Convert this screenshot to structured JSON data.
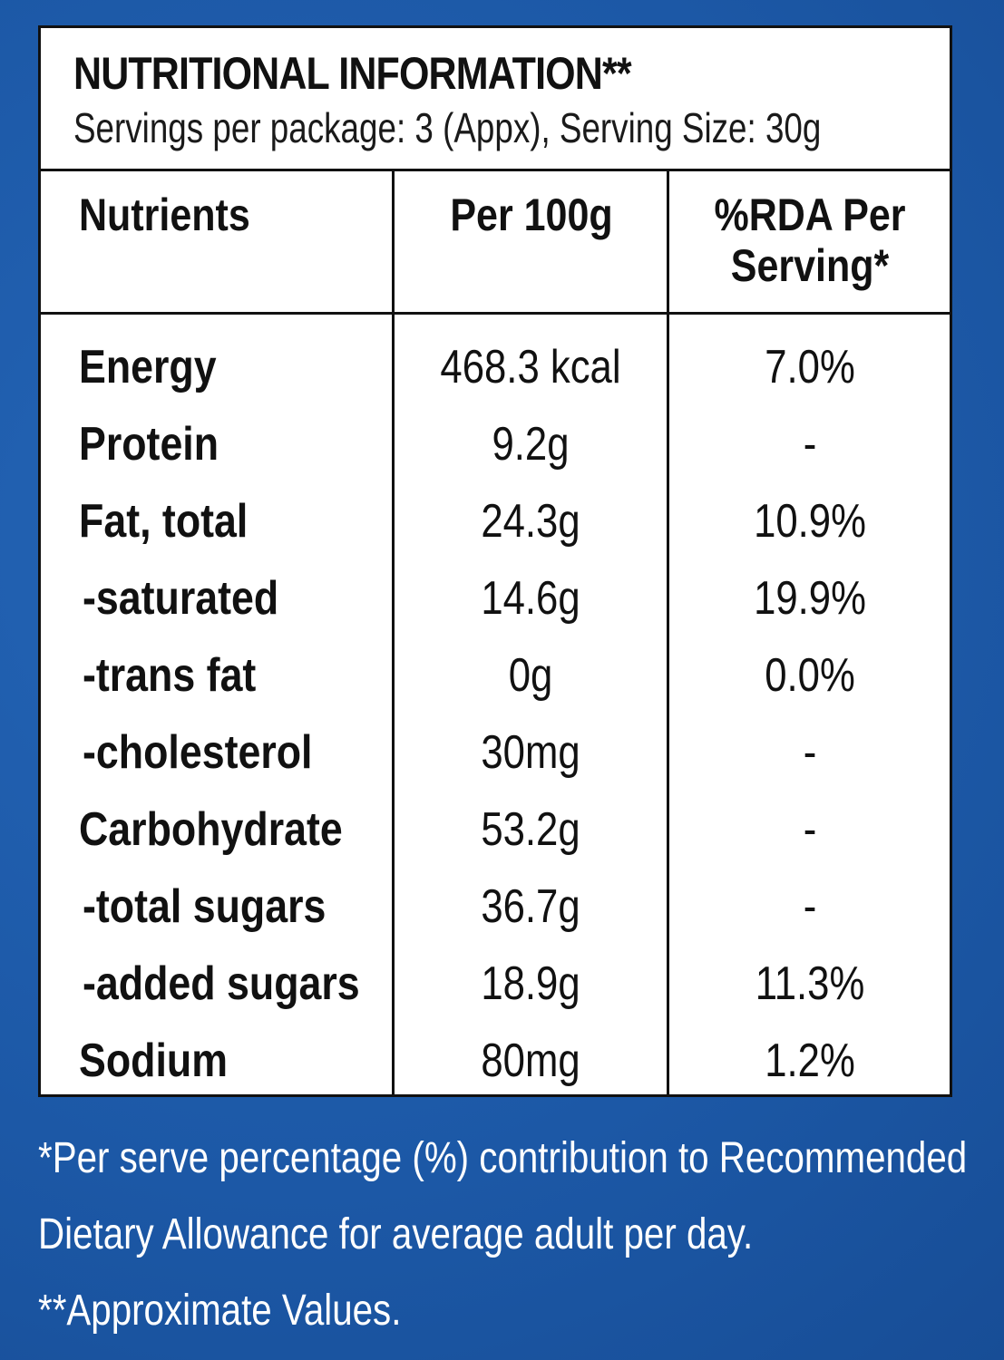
{
  "header": {
    "title": "NUTRITIONAL INFORMATION**",
    "subtitle": "Servings per package: 3 (Appx), Serving Size: 30g"
  },
  "columns": {
    "nutrients": "Nutrients",
    "per100": "Per 100g",
    "rda_line1": "%RDA Per",
    "rda_line2": "Serving*"
  },
  "rows": [
    {
      "name": "Energy",
      "per100": "468.3 kcal",
      "rda": "7.0%"
    },
    {
      "name": "Protein",
      "per100": "9.2g",
      "rda": "-"
    },
    {
      "name": "Fat, total",
      "per100": "24.3g",
      "rda": "10.9%"
    },
    {
      "name": "-saturated",
      "per100": "14.6g",
      "rda": "19.9%"
    },
    {
      "name": "-trans fat",
      "per100": "0g",
      "rda": "0.0%"
    },
    {
      "name": "-cholesterol",
      "per100": "30mg",
      "rda": "-"
    },
    {
      "name": "Carbohydrate",
      "per100": "53.2g",
      "rda": "-"
    },
    {
      "name": "-total sugars",
      "per100": "36.7g",
      "rda": "-"
    },
    {
      "name": "-added sugars",
      "per100": "18.9g",
      "rda": "11.3%"
    },
    {
      "name": "Sodium",
      "per100": "80mg",
      "rda": "1.2%"
    }
  ],
  "footnotes": {
    "line1": "*Per serve percentage (%) contribution to Recommended",
    "line2": "Dietary Allowance for average adult per day.",
    "line3": "**Approximate Values."
  },
  "colors": {
    "background": "#1f5fae",
    "panel": "#ffffff",
    "text": "#111111",
    "footnote_text": "#ffffff"
  }
}
